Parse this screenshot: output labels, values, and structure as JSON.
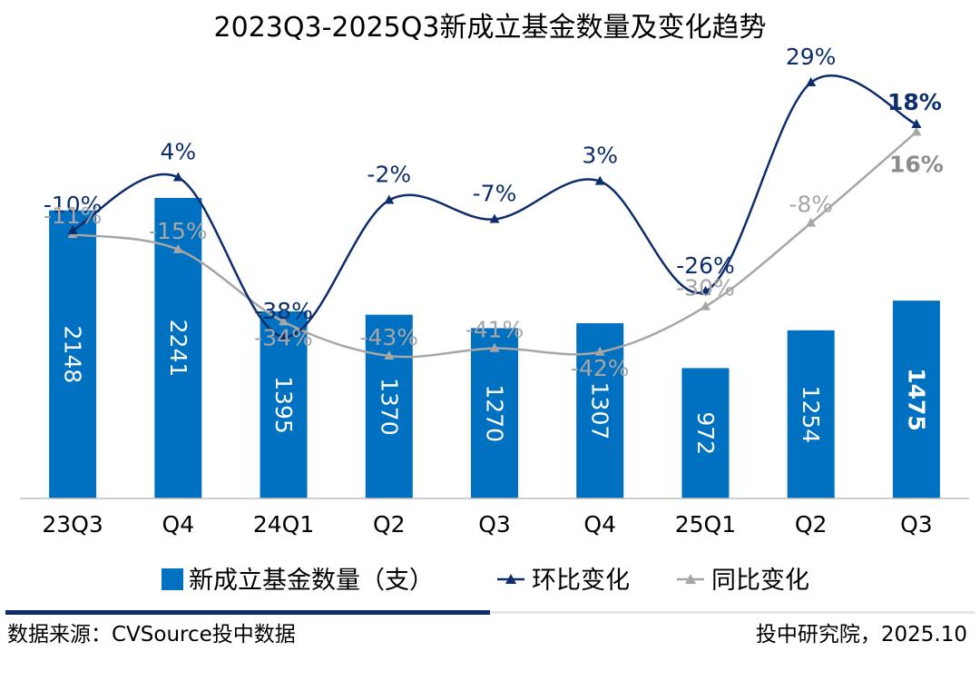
{
  "chart_data": {
    "type": "bar",
    "title": "2023Q3-2025Q3新成立基金数量及变化趋势",
    "categories": [
      "23Q3",
      "Q4",
      "24Q1",
      "Q2",
      "Q3",
      "Q4",
      "25Q1",
      "Q2",
      "Q3"
    ],
    "values": [
      2148,
      2241,
      1395,
      1370,
      1270,
      1307,
      972,
      1254,
      1475
    ],
    "series": [
      {
        "name": "新成立基金数量（支）",
        "type": "bar",
        "axis": "left",
        "values": [
          2148,
          2241,
          1395,
          1370,
          1270,
          1307,
          972,
          1254,
          1475
        ],
        "labels": [
          "2148",
          "2241",
          "1395",
          "1370",
          "1270",
          "1307",
          "972",
          "1254",
          "1475"
        ]
      },
      {
        "name": "环比变化",
        "type": "line",
        "axis": "right",
        "values": [
          -10,
          4,
          -38,
          -2,
          -7,
          3,
          -26,
          29,
          18
        ],
        "labels": [
          "-10%",
          "4%",
          "-38%",
          "-2%",
          "-7%",
          "3%",
          "-26%",
          "29%",
          "18%"
        ]
      },
      {
        "name": "同比变化",
        "type": "line",
        "axis": "right",
        "values": [
          -11,
          -15,
          -34,
          -43,
          -41,
          -42,
          -30,
          -8,
          16
        ],
        "labels": [
          "-11%",
          "-15%",
          "-34%",
          "-43%",
          "-41%",
          "-42%",
          "-30%",
          "-8%",
          "16%"
        ]
      }
    ],
    "ylim": [
      0,
      2640
    ],
    "y2lim": [
      -70,
      40
    ],
    "grid": false,
    "legend_position": "bottom",
    "colors": {
      "bar": "#0070C0",
      "qoq": "#0D2D6C",
      "yoy": "#A6A6A6",
      "axis": "#BFBFBF"
    }
  },
  "footer": {
    "source": "数据来源：CVSource投中数据",
    "credit": "投中研究院，2025.10"
  }
}
